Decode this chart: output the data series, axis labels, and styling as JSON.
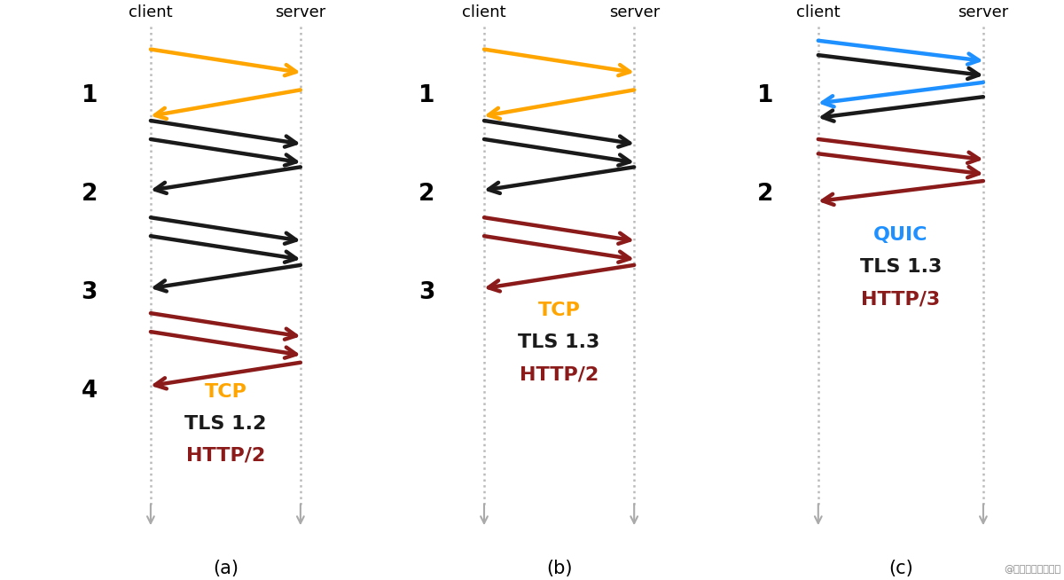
{
  "bg_color": "#ffffff",
  "orange": "#FFA500",
  "black": "#1a1a1a",
  "darkred": "#8B1A1A",
  "blue": "#1E90FF",
  "gray": "#999999",
  "watermark": "@稻土掘金技术社区",
  "panel_a": {
    "label": "(a)",
    "rtt_labels": [
      "1",
      "2",
      "3",
      "4"
    ],
    "legend": [
      {
        "text": "TCP",
        "color": "#FFA500"
      },
      {
        "text": "TLS 1.2",
        "color": "#1a1a1a"
      },
      {
        "text": "HTTP/2",
        "color": "#8B1A1A"
      }
    ]
  },
  "panel_b": {
    "label": "(b)",
    "rtt_labels": [
      "1",
      "2",
      "3"
    ],
    "legend": [
      {
        "text": "TCP",
        "color": "#FFA500"
      },
      {
        "text": "TLS 1.3",
        "color": "#1a1a1a"
      },
      {
        "text": "HTTP/2",
        "color": "#8B1A1A"
      }
    ]
  },
  "panel_c": {
    "label": "(c)",
    "rtt_labels": [
      "1",
      "2"
    ],
    "legend": [
      {
        "text": "QUIC",
        "color": "#1E90FF"
      },
      {
        "text": "TLS 1.3",
        "color": "#1a1a1a"
      },
      {
        "text": "HTTP/3",
        "color": "#8B1A1A"
      }
    ]
  }
}
